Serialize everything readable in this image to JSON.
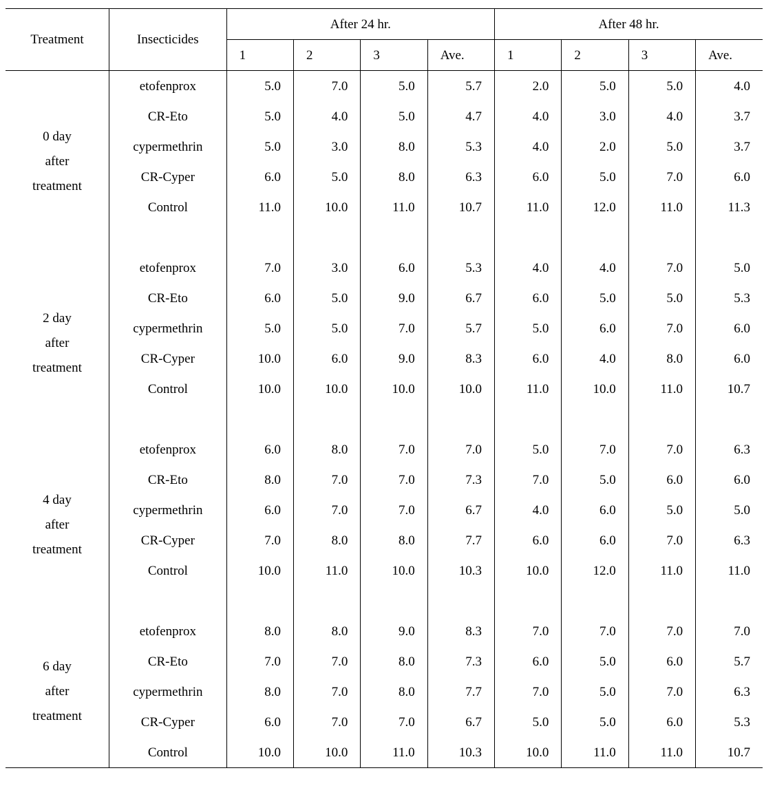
{
  "type": "table",
  "font_family": "serif",
  "font_size_pt": 14,
  "colors": {
    "text": "#000000",
    "background": "#ffffff",
    "rule": "#000000"
  },
  "header": {
    "treatment": "Treatment",
    "insecticides": "Insecticides",
    "group24": "After 24 hr.",
    "group48": "After 48 hr.",
    "sub": [
      "1",
      "2",
      "3",
      "Ave.",
      "1",
      "2",
      "3",
      "Ave."
    ]
  },
  "blocks": [
    {
      "treatment_lines": [
        "0 day",
        "after",
        "treatment"
      ],
      "rows": [
        {
          "insecticide": "etofenprox",
          "v": [
            "5.0",
            "7.0",
            "5.0",
            "5.7",
            "2.0",
            "5.0",
            "5.0",
            "4.0"
          ]
        },
        {
          "insecticide": "CR-Eto",
          "v": [
            "5.0",
            "4.0",
            "5.0",
            "4.7",
            "4.0",
            "3.0",
            "4.0",
            "3.7"
          ]
        },
        {
          "insecticide": "cypermethrin",
          "v": [
            "5.0",
            "3.0",
            "8.0",
            "5.3",
            "4.0",
            "2.0",
            "5.0",
            "3.7"
          ]
        },
        {
          "insecticide": "CR-Cyper",
          "v": [
            "6.0",
            "5.0",
            "8.0",
            "6.3",
            "6.0",
            "5.0",
            "7.0",
            "6.0"
          ]
        },
        {
          "insecticide": "Control",
          "v": [
            "11.0",
            "10.0",
            "11.0",
            "10.7",
            "11.0",
            "12.0",
            "11.0",
            "11.3"
          ]
        }
      ]
    },
    {
      "treatment_lines": [
        "2 day",
        "after",
        "treatment"
      ],
      "rows": [
        {
          "insecticide": "etofenprox",
          "v": [
            "7.0",
            "3.0",
            "6.0",
            "5.3",
            "4.0",
            "4.0",
            "7.0",
            "5.0"
          ]
        },
        {
          "insecticide": "CR-Eto",
          "v": [
            "6.0",
            "5.0",
            "9.0",
            "6.7",
            "6.0",
            "5.0",
            "5.0",
            "5.3"
          ]
        },
        {
          "insecticide": "cypermethrin",
          "v": [
            "5.0",
            "5.0",
            "7.0",
            "5.7",
            "5.0",
            "6.0",
            "7.0",
            "6.0"
          ]
        },
        {
          "insecticide": "CR-Cyper",
          "v": [
            "10.0",
            "6.0",
            "9.0",
            "8.3",
            "6.0",
            "4.0",
            "8.0",
            "6.0"
          ]
        },
        {
          "insecticide": "Control",
          "v": [
            "10.0",
            "10.0",
            "10.0",
            "10.0",
            "11.0",
            "10.0",
            "11.0",
            "10.7"
          ]
        }
      ]
    },
    {
      "treatment_lines": [
        "4 day",
        "after",
        "treatment"
      ],
      "rows": [
        {
          "insecticide": "etofenprox",
          "v": [
            "6.0",
            "8.0",
            "7.0",
            "7.0",
            "5.0",
            "7.0",
            "7.0",
            "6.3"
          ]
        },
        {
          "insecticide": "CR-Eto",
          "v": [
            "8.0",
            "7.0",
            "7.0",
            "7.3",
            "7.0",
            "5.0",
            "6.0",
            "6.0"
          ]
        },
        {
          "insecticide": "cypermethrin",
          "v": [
            "6.0",
            "7.0",
            "7.0",
            "6.7",
            "4.0",
            "6.0",
            "5.0",
            "5.0"
          ]
        },
        {
          "insecticide": "CR-Cyper",
          "v": [
            "7.0",
            "8.0",
            "8.0",
            "7.7",
            "6.0",
            "6.0",
            "7.0",
            "6.3"
          ]
        },
        {
          "insecticide": "Control",
          "v": [
            "10.0",
            "11.0",
            "10.0",
            "10.3",
            "10.0",
            "12.0",
            "11.0",
            "11.0"
          ]
        }
      ]
    },
    {
      "treatment_lines": [
        "6 day",
        "after",
        "treatment"
      ],
      "rows": [
        {
          "insecticide": "etofenprox",
          "v": [
            "8.0",
            "8.0",
            "9.0",
            "8.3",
            "7.0",
            "7.0",
            "7.0",
            "7.0"
          ]
        },
        {
          "insecticide": "CR-Eto",
          "v": [
            "7.0",
            "7.0",
            "8.0",
            "7.3",
            "6.0",
            "5.0",
            "6.0",
            "5.7"
          ]
        },
        {
          "insecticide": "cypermethrin",
          "v": [
            "8.0",
            "7.0",
            "8.0",
            "7.7",
            "7.0",
            "5.0",
            "7.0",
            "6.3"
          ]
        },
        {
          "insecticide": "CR-Cyper",
          "v": [
            "6.0",
            "7.0",
            "7.0",
            "6.7",
            "5.0",
            "5.0",
            "6.0",
            "5.3"
          ]
        },
        {
          "insecticide": "Control",
          "v": [
            "10.0",
            "10.0",
            "11.0",
            "10.3",
            "10.0",
            "11.0",
            "11.0",
            "10.7"
          ]
        }
      ]
    }
  ]
}
